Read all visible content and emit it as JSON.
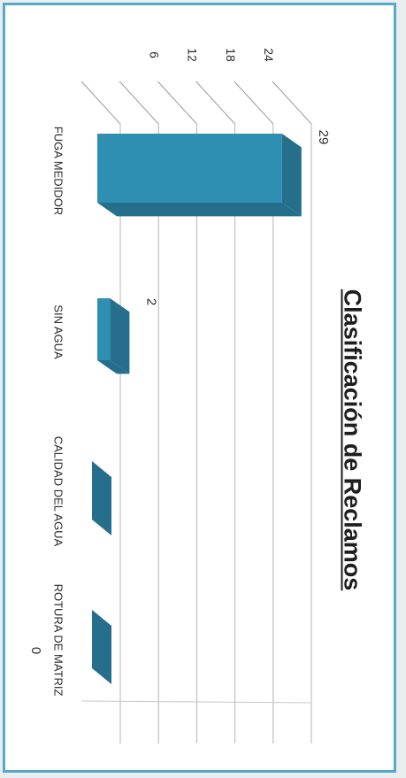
{
  "chart_data": {
    "type": "bar",
    "title": "Clasificación de Reclamos",
    "categories": [
      "FUGA MEDIDOR",
      "SIN AGUA",
      "CALIDAD DEL AGUA",
      "ROTURA DE MATRIZ"
    ],
    "values": [
      29,
      2,
      0,
      0
    ],
    "data_labels": [
      "29",
      "2",
      "",
      "0"
    ],
    "axis_ticks": [
      "6",
      "12",
      "18",
      "24"
    ],
    "ylim": [
      0,
      30
    ],
    "grid": true,
    "bar_color": "#2f8fb3",
    "bar_dark_color": "#256f8c",
    "bar_light_color": "#4aa9cc"
  }
}
